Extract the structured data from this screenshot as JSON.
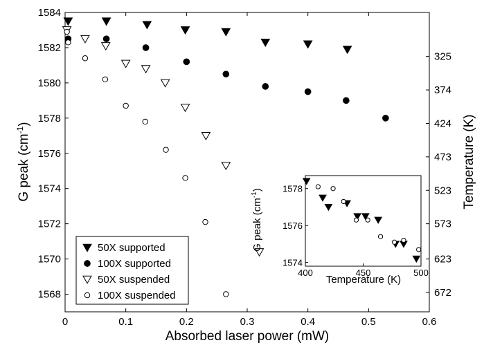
{
  "chart_data": [
    {
      "type": "scatter",
      "title": "",
      "xlabel": "Absorbed laser power (mW)",
      "ylabel": "G peak (cm",
      "ylabel_superscript": "-1",
      "ylabel_close": ")",
      "y2label": "Temperature (K)",
      "xlim": [
        0,
        0.6
      ],
      "ylim": [
        1567,
        1584
      ],
      "xticks": [
        "0",
        "0.1",
        "0.2",
        "0.3",
        "0.4",
        "0.5",
        "0.6"
      ],
      "yticks": [
        "1568",
        "1570",
        "1572",
        "1574",
        "1576",
        "1578",
        "1580",
        "1582",
        "1584"
      ],
      "y2_ticks": [
        {
          "label": "325",
          "at_y": 1581.5
        },
        {
          "label": "374",
          "at_y": 1579.6
        },
        {
          "label": "424",
          "at_y": 1577.7
        },
        {
          "label": "473",
          "at_y": 1575.8
        },
        {
          "label": "523",
          "at_y": 1573.9
        },
        {
          "label": "573",
          "at_y": 1572.0
        },
        {
          "label": "623",
          "at_y": 1570.0
        },
        {
          "label": "672",
          "at_y": 1568.1
        }
      ],
      "grid": false,
      "legend_position": "bottom-left",
      "series": [
        {
          "name": "50X supported",
          "marker": "filled-triangle-down",
          "points": [
            [
              0.005,
              1583.5
            ],
            [
              0.068,
              1583.5
            ],
            [
              0.135,
              1583.3
            ],
            [
              0.198,
              1583.0
            ],
            [
              0.265,
              1582.9
            ],
            [
              0.33,
              1582.3
            ],
            [
              0.4,
              1582.2
            ],
            [
              0.465,
              1581.9
            ]
          ]
        },
        {
          "name": "100X supported",
          "marker": "filled-circle",
          "points": [
            [
              0.005,
              1582.5
            ],
            [
              0.068,
              1582.5
            ],
            [
              0.133,
              1582.0
            ],
            [
              0.2,
              1581.2
            ],
            [
              0.265,
              1580.5
            ],
            [
              0.33,
              1579.8
            ],
            [
              0.4,
              1579.5
            ],
            [
              0.463,
              1579.0
            ],
            [
              0.528,
              1578.0
            ]
          ]
        },
        {
          "name": "50X suspended",
          "marker": "open-triangle-down",
          "points": [
            [
              0.003,
              1583.0
            ],
            [
              0.033,
              1582.5
            ],
            [
              0.067,
              1582.1
            ],
            [
              0.1,
              1581.1
            ],
            [
              0.133,
              1580.8
            ],
            [
              0.165,
              1580.0
            ],
            [
              0.198,
              1578.6
            ],
            [
              0.232,
              1577.0
            ],
            [
              0.265,
              1575.3
            ],
            [
              0.32,
              1570.4
            ]
          ]
        },
        {
          "name": "100X suspended",
          "marker": "open-circle",
          "points": [
            [
              0.003,
              1582.9
            ],
            [
              0.005,
              1582.3
            ],
            [
              0.033,
              1581.4
            ],
            [
              0.066,
              1580.2
            ],
            [
              0.1,
              1578.7
            ],
            [
              0.132,
              1577.8
            ],
            [
              0.166,
              1576.2
            ],
            [
              0.198,
              1574.6
            ],
            [
              0.231,
              1572.1
            ],
            [
              0.265,
              1568.0
            ]
          ]
        }
      ]
    },
    {
      "type": "scatter",
      "title": "",
      "xlabel": "Temperature (K)",
      "ylabel": "G peak (cm",
      "ylabel_superscript": "-1",
      "ylabel_close": ")",
      "xlim": [
        400,
        500
      ],
      "ylim": [
        1573.8,
        1578.7
      ],
      "xticks": [
        "400",
        "450",
        "500"
      ],
      "yticks": [
        "1574",
        "1576",
        "1578"
      ],
      "legend_position": "none",
      "series": [
        {
          "marker": "filled-triangle-down",
          "points": [
            [
              401,
              1578.4
            ],
            [
              415,
              1577.5
            ],
            [
              420,
              1577.0
            ],
            [
              436,
              1577.2
            ],
            [
              445,
              1576.5
            ],
            [
              452,
              1576.5
            ],
            [
              463,
              1576.3
            ],
            [
              478,
              1575.0
            ],
            [
              485,
              1575.0
            ],
            [
              496,
              1574.2
            ]
          ]
        },
        {
          "marker": "open-circle",
          "points": [
            [
              411,
              1578.1
            ],
            [
              424,
              1578.0
            ],
            [
              433,
              1577.3
            ],
            [
              444,
              1576.3
            ],
            [
              454,
              1576.3
            ],
            [
              465,
              1575.4
            ],
            [
              477,
              1575.1
            ],
            [
              485,
              1575.2
            ],
            [
              498,
              1574.7
            ]
          ]
        }
      ]
    }
  ]
}
